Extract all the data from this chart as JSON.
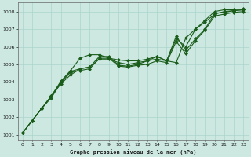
{
  "title": "Graphe pression niveau de la mer (hPa)",
  "bg_color": "#cce8e0",
  "grid_color": "#aad4cc",
  "line_color": "#1a5c1a",
  "xlim": [
    -0.5,
    23.5
  ],
  "ylim": [
    1000.7,
    1008.5
  ],
  "yticks": [
    1001,
    1002,
    1003,
    1004,
    1005,
    1006,
    1007,
    1008
  ],
  "xticks": [
    0,
    1,
    2,
    3,
    4,
    5,
    6,
    7,
    8,
    9,
    10,
    11,
    12,
    13,
    14,
    15,
    16,
    17,
    18,
    19,
    20,
    21,
    22,
    23
  ],
  "series": [
    {
      "x": [
        0,
        1,
        2,
        3,
        4,
        5,
        6,
        7,
        8,
        9,
        10,
        11,
        12,
        13,
        14,
        15,
        16,
        17,
        18,
        19,
        20,
        21,
        22,
        23
      ],
      "y": [
        1001.1,
        1001.8,
        1002.5,
        1003.2,
        1003.9,
        1004.4,
        1004.75,
        1004.85,
        1005.3,
        1005.3,
        1005.1,
        1005.0,
        1005.1,
        1005.2,
        1005.3,
        1005.2,
        1005.1,
        1006.5,
        1007.0,
        1007.4,
        1007.85,
        1008.0,
        1008.05,
        1008.1
      ],
      "marker": "D",
      "markersize": 2.0,
      "linewidth": 0.8
    },
    {
      "x": [
        0,
        1,
        2,
        3,
        4,
        5,
        6,
        7,
        8,
        9,
        10,
        11,
        12,
        13,
        14,
        15,
        16,
        17,
        18,
        19,
        20,
        21,
        22,
        23
      ],
      "y": [
        1001.1,
        1001.8,
        1002.5,
        1003.2,
        1004.05,
        1004.65,
        1005.35,
        1005.55,
        1005.55,
        1005.35,
        1005.25,
        1005.2,
        1005.2,
        1005.3,
        1005.45,
        1005.2,
        1006.45,
        1006.0,
        1007.0,
        1007.5,
        1008.0,
        1008.1,
        1008.1,
        1008.15
      ],
      "marker": "D",
      "markersize": 2.0,
      "linewidth": 0.8
    },
    {
      "x": [
        0,
        1,
        2,
        3,
        4,
        5,
        6,
        7,
        8,
        9,
        10,
        11,
        12,
        13,
        14,
        15,
        16,
        17,
        18,
        19,
        20,
        21,
        22,
        23
      ],
      "y": [
        1001.1,
        1001.8,
        1002.5,
        1003.2,
        1004.0,
        1004.6,
        1004.75,
        1004.85,
        1005.45,
        1005.45,
        1004.95,
        1004.9,
        1005.0,
        1005.2,
        1005.45,
        1005.2,
        1006.6,
        1005.8,
        1006.45,
        1007.0,
        1007.9,
        1007.95,
        1008.05,
        1008.1
      ],
      "marker": "D",
      "markersize": 2.0,
      "linewidth": 0.8
    },
    {
      "x": [
        0,
        1,
        2,
        3,
        4,
        5,
        6,
        7,
        8,
        9,
        10,
        11,
        12,
        13,
        14,
        15,
        16,
        17,
        18,
        19,
        20,
        21,
        22,
        23
      ],
      "y": [
        1001.1,
        1001.8,
        1002.5,
        1003.1,
        1003.95,
        1004.55,
        1004.65,
        1004.75,
        1005.35,
        1005.35,
        1004.9,
        1004.85,
        1004.95,
        1005.0,
        1005.2,
        1005.1,
        1006.3,
        1005.6,
        1006.35,
        1006.95,
        1007.75,
        1007.85,
        1007.95,
        1008.0
      ],
      "marker": "D",
      "markersize": 2.0,
      "linewidth": 0.8
    }
  ]
}
